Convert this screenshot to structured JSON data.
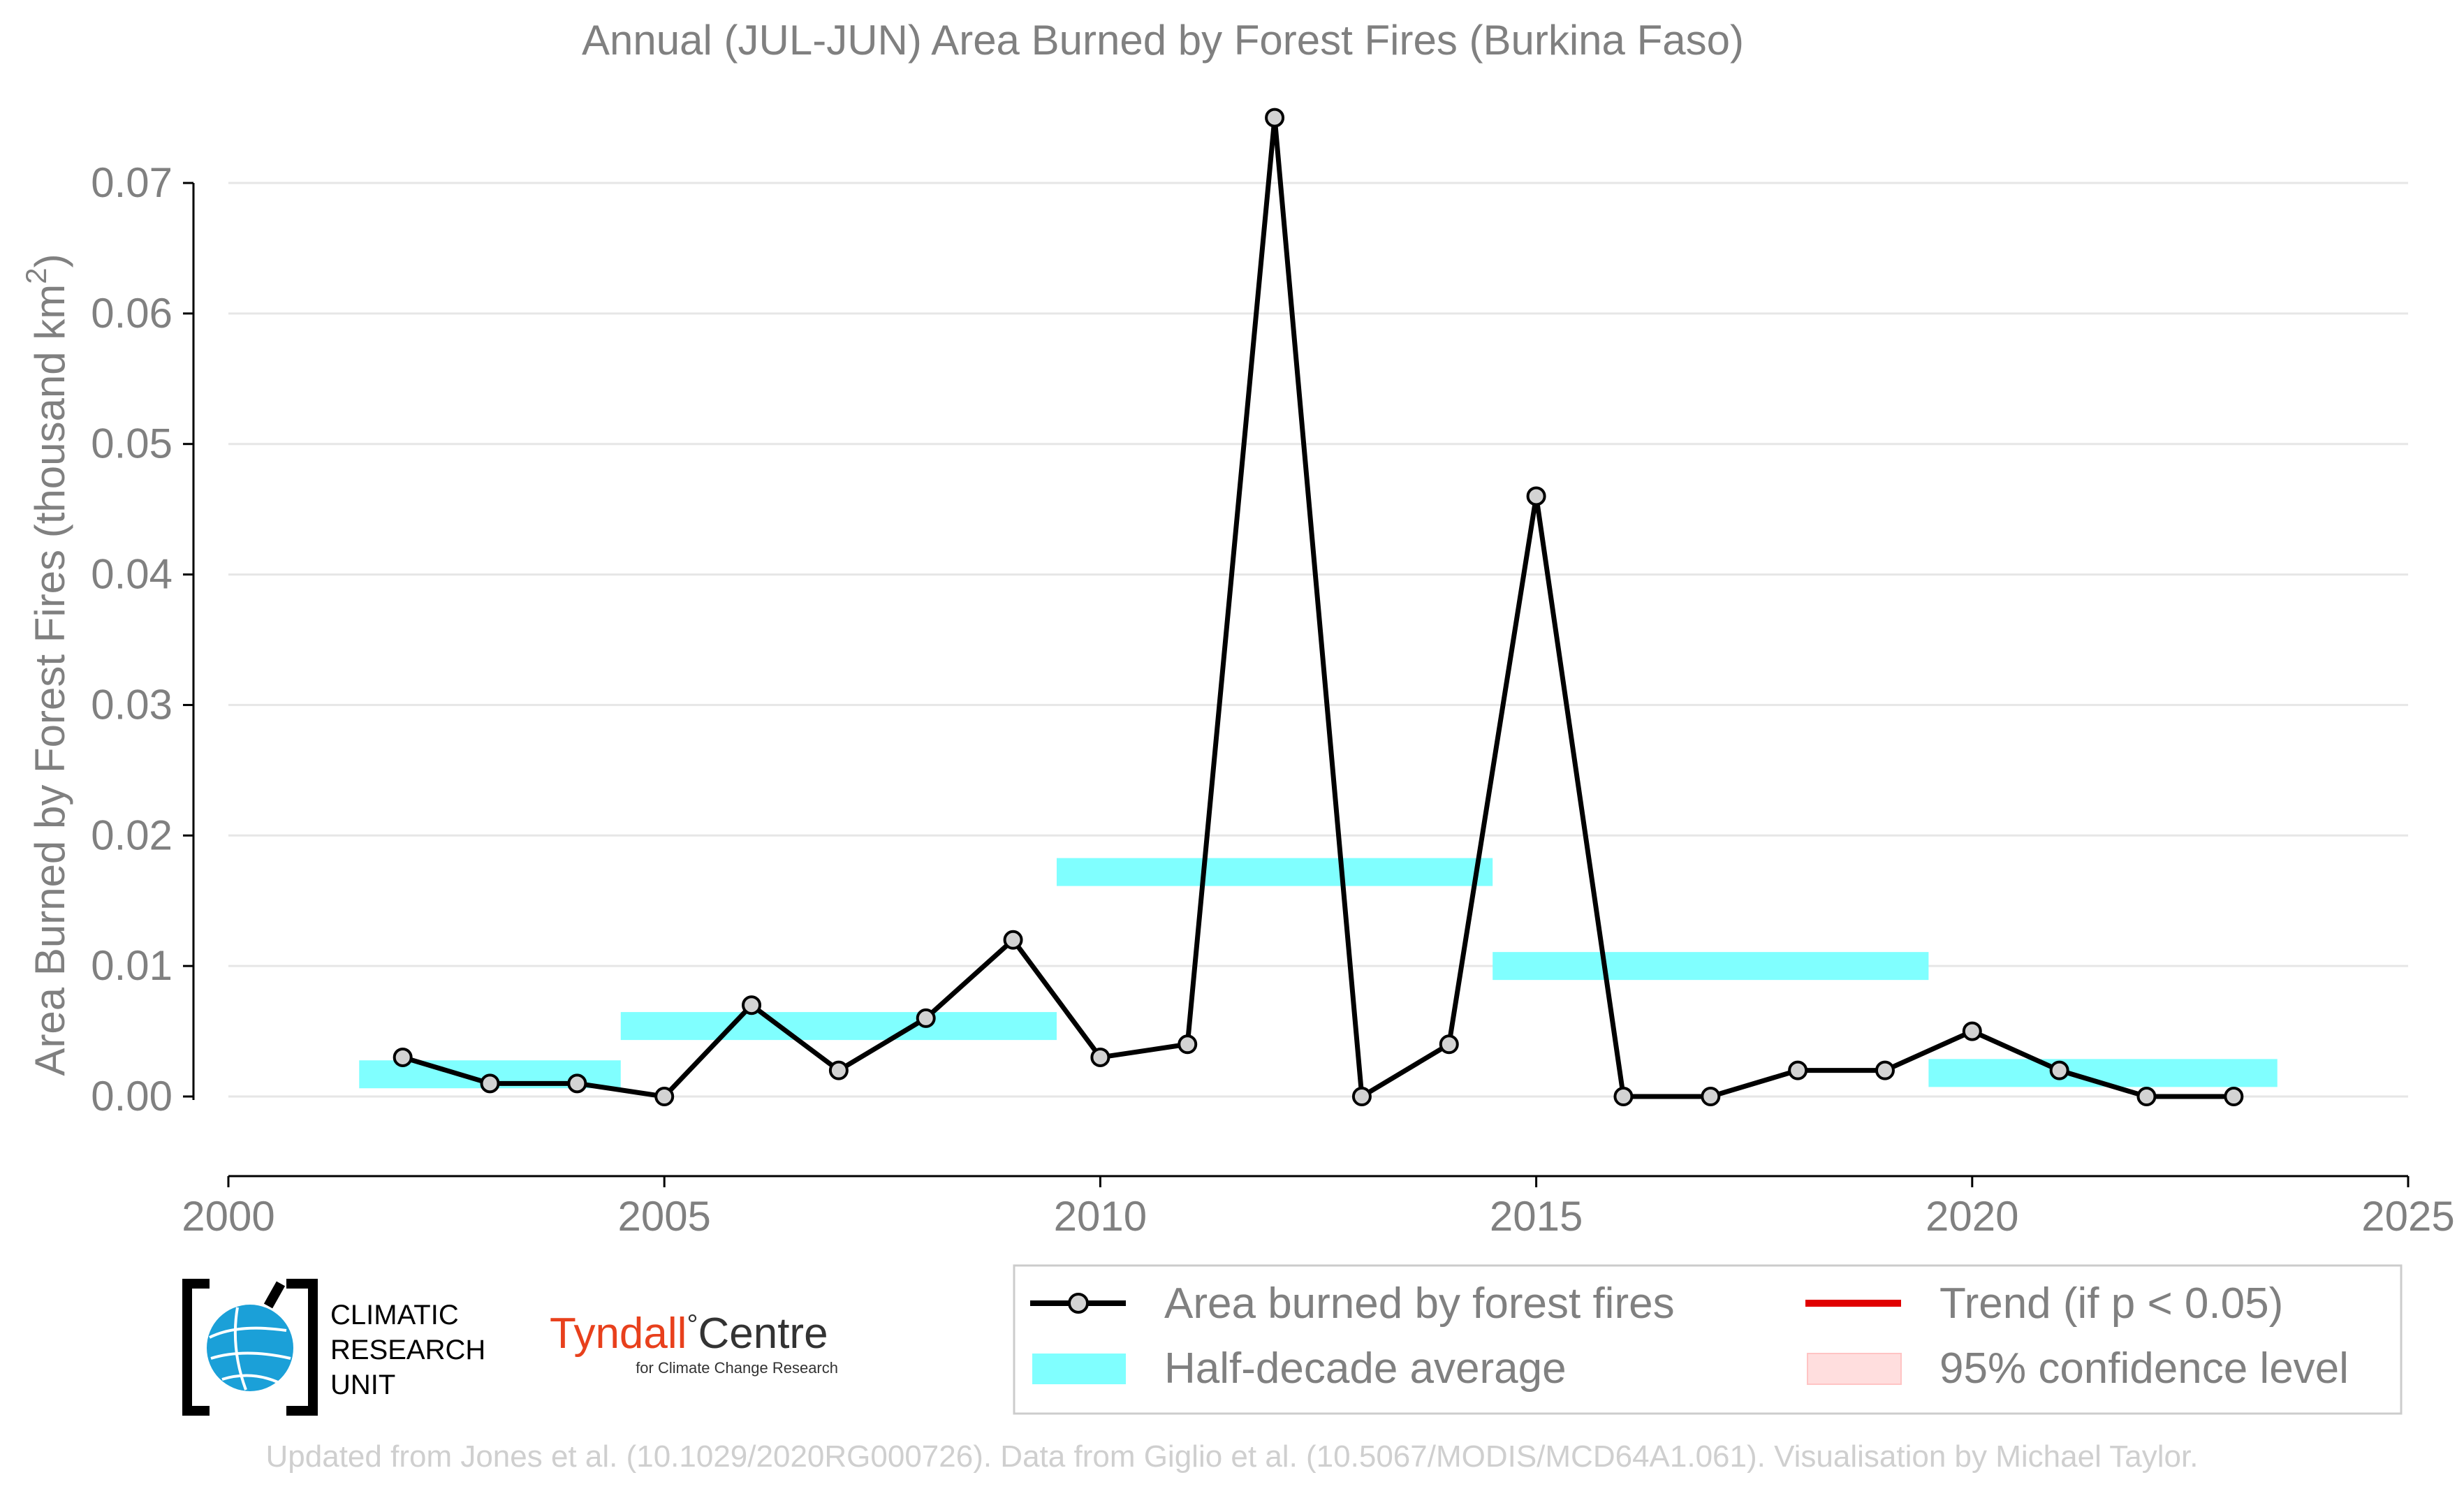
{
  "chart_data": {
    "type": "line",
    "title": "Annual (JUL-JUN) Area Burned by Forest Fires (Burkina Faso)",
    "ylabel": "Area Burned by Forest Fires (thousand km",
    "ylabel_sup": "2",
    "ylabel_end": ")",
    "xlabel": "",
    "xlim": [
      2000,
      2025
    ],
    "ylim": [
      -0.006,
      0.075
    ],
    "x_ticks": [
      2000,
      2005,
      2010,
      2015,
      2020,
      2025
    ],
    "y_ticks": [
      0.0,
      0.01,
      0.02,
      0.03,
      0.04,
      0.05,
      0.06,
      0.07
    ],
    "y_tick_labels": [
      "0.00",
      "0.01",
      "0.02",
      "0.03",
      "0.04",
      "0.05",
      "0.06",
      "0.07"
    ],
    "grid": true,
    "series": [
      {
        "name": "Area burned by forest fires",
        "color": "#000000",
        "marker_fill": "#d3d3d3",
        "x": [
          2002,
          2003,
          2004,
          2005,
          2006,
          2007,
          2008,
          2009,
          2010,
          2011,
          2012,
          2013,
          2014,
          2015,
          2016,
          2017,
          2018,
          2019,
          2020,
          2021,
          2022,
          2023
        ],
        "y": [
          0.003,
          0.001,
          0.001,
          0.0,
          0.007,
          0.002,
          0.006,
          0.012,
          0.003,
          0.004,
          0.075,
          0.0,
          0.004,
          0.046,
          0.0,
          0.0,
          0.002,
          0.002,
          0.005,
          0.002,
          0.0,
          0.0
        ]
      }
    ],
    "half_decade_average": {
      "name": "Half-decade average",
      "color": "#80ffff",
      "segments": [
        {
          "x0": 2001.5,
          "x1": 2004.5,
          "y": 0.0017
        },
        {
          "x0": 2004.5,
          "x1": 2009.5,
          "y": 0.0054
        },
        {
          "x0": 2009.5,
          "x1": 2014.5,
          "y": 0.0172
        },
        {
          "x0": 2014.5,
          "x1": 2019.5,
          "y": 0.01
        },
        {
          "x0": 2019.5,
          "x1": 2023.5,
          "y": 0.0018
        }
      ]
    },
    "legend": {
      "placement": "bottom-right",
      "entries": [
        {
          "label": "Area burned by forest fires",
          "kind": "line-marker",
          "color": "#000000"
        },
        {
          "label": "Trend (if p < 0.05)",
          "kind": "line",
          "color": "#e00000"
        },
        {
          "label": "Half-decade average",
          "kind": "band",
          "color": "#80ffff"
        },
        {
          "label": "95% confidence level",
          "kind": "band",
          "color": "#ffdede"
        }
      ]
    }
  },
  "logos": {
    "cru": {
      "line1": "CLIMATIC",
      "line2": "RESEARCH",
      "line3": "UNIT",
      "globe_color": "#1ba0d8"
    },
    "tyndall": {
      "name": "Tyndall",
      "degree": "°",
      "centre": "Centre",
      "tagline": "for Climate Change Research",
      "color": "#e8401c"
    }
  },
  "footer": "Updated from Jones et al. (10.1029/2020RG000726). Data from Giglio et al. (10.5067/MODIS/MCD64A1.061). Visualisation by Michael Taylor."
}
